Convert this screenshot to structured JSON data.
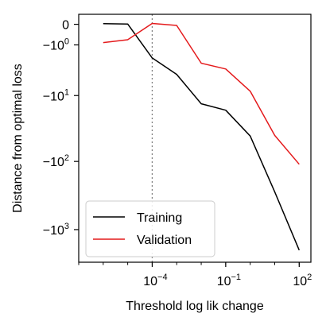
{
  "chart_data": {
    "type": "line",
    "title": "",
    "xlabel": "Threshold log lik change",
    "ylabel": "Distance from optimal loss",
    "x_scale": "log10",
    "y_scale": "symlog",
    "xlim": [
      1e-07,
      300
    ],
    "ylim": [
      -3000,
      0.4
    ],
    "x_ticks": [
      {
        "value": 0.0001,
        "base": "10",
        "exp": "−4"
      },
      {
        "value": 0.1,
        "base": "10",
        "exp": "−1"
      },
      {
        "value": 100,
        "base": "10",
        "exp": "2"
      }
    ],
    "y_ticks": [
      {
        "value": 0,
        "base": "0",
        "exp": ""
      },
      {
        "value": -1,
        "base": "−10",
        "exp": "0"
      },
      {
        "value": -10,
        "base": "−10",
        "exp": "1"
      },
      {
        "value": -100,
        "base": "−10",
        "exp": "2"
      },
      {
        "value": -1000,
        "base": "−10",
        "exp": "3"
      }
    ],
    "vline": {
      "x": 0.0001,
      "style": "dotted",
      "color": "#808080"
    },
    "legend": {
      "position": "bottom-left"
    },
    "series": [
      {
        "name": "Training",
        "color": "#000000",
        "x": [
          1e-06,
          1e-05,
          0.0001,
          0.001,
          0.01,
          0.1,
          1,
          10,
          100
        ],
        "y": [
          0.02,
          0.01,
          -2.1,
          -4.4,
          -13.5,
          -17.0,
          -42,
          -280,
          -2000
        ]
      },
      {
        "name": "Validation",
        "color": "#e41a1c",
        "x": [
          1e-06,
          1e-05,
          0.0001,
          0.001,
          0.01,
          0.1,
          1,
          10,
          100
        ],
        "y": [
          -0.85,
          -0.68,
          0.03,
          -0.04,
          -2.7,
          -3.5,
          -8.5,
          -41,
          -110
        ]
      }
    ]
  }
}
